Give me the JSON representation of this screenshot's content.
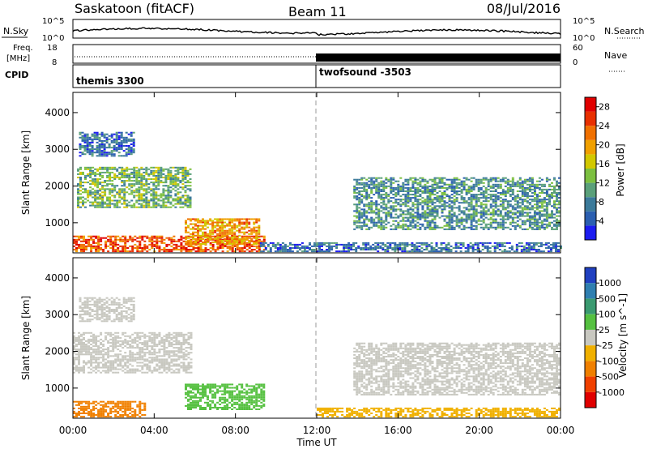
{
  "header": {
    "station": "Saskatoon (fitACF)",
    "beam": "Beam 11",
    "date": "08/Jul/2016"
  },
  "noise_panel": {
    "left_label": "N.Sky",
    "left_ticks": [
      "10^5",
      "10^0"
    ],
    "right_label": "N.Search",
    "right_ticks": [
      "10^5",
      "10^0"
    ]
  },
  "freq_panel": {
    "left_label_1": "Freq.",
    "left_label_2": "[MHz]",
    "left_ticks": [
      "18",
      "8"
    ],
    "right_label": "Nave",
    "right_ticks": [
      "60",
      "0"
    ],
    "cpid_label": "CPID"
  },
  "cpid_panel": {
    "programs": [
      {
        "name": "themis 3300",
        "start_hour": 0
      },
      {
        "name": "twofsound -3503",
        "start_hour": 12
      }
    ]
  },
  "x_axis": {
    "label": "Time UT",
    "ticks": [
      "00:00",
      "04:00",
      "08:00",
      "12:00",
      "16:00",
      "20:00",
      "00:00"
    ]
  },
  "chart_data": [
    {
      "type": "heatmap",
      "panel": "power",
      "ylabel": "Slant Range [km]",
      "yticks": [
        "4000",
        "3000",
        "2000",
        "1000"
      ],
      "ylim": [
        180,
        4550
      ],
      "xlim_hours": [
        0,
        24
      ],
      "colorbar": {
        "label": "Power [dB]",
        "ticks": [
          "28",
          "24",
          "20",
          "16",
          "12",
          "8",
          "4"
        ],
        "range": [
          0,
          30
        ],
        "colors": [
          "#1c1cf0",
          "#2b5fb0",
          "#3b7a9a",
          "#5aa07a",
          "#7cc040",
          "#d2c800",
          "#f0a000",
          "#f07000",
          "#e83000",
          "#e00000"
        ]
      },
      "echo_regions": [
        {
          "t0": 0,
          "t1": 9.4,
          "r0": 200,
          "r1": 650,
          "value": 24
        },
        {
          "t0": 0.2,
          "t1": 5.8,
          "r0": 1400,
          "r1": 2500,
          "value": 12
        },
        {
          "t0": 0.3,
          "t1": 3.0,
          "r0": 2800,
          "r1": 3450,
          "value": 6
        },
        {
          "t0": 5.5,
          "t1": 9.2,
          "r0": 400,
          "r1": 1100,
          "value": 20
        },
        {
          "t0": 9.2,
          "t1": 24,
          "r0": 200,
          "r1": 450,
          "value": 6
        },
        {
          "t0": 13.8,
          "t1": 24,
          "r0": 800,
          "r1": 2200,
          "value": 9
        }
      ]
    },
    {
      "type": "heatmap",
      "panel": "velocity",
      "ylabel": "Slant Range [km]",
      "yticks": [
        "4000",
        "3000",
        "2000",
        "1000"
      ],
      "ylim": [
        180,
        4550
      ],
      "xlim_hours": [
        0,
        24
      ],
      "colorbar": {
        "label": "Velocity [m s^-1]",
        "ticks": [
          "1000",
          "500",
          "100",
          "25",
          "-25",
          "-100",
          "-500",
          "-1000"
        ],
        "colors": [
          "#2040c0",
          "#2f7fb0",
          "#3a9a70",
          "#55c040",
          "#c8c8c0",
          "#f0b000",
          "#f08000",
          "#f04000",
          "#e00000"
        ]
      },
      "echo_regions": [
        {
          "t0": 0,
          "t1": 5.8,
          "r0": 1400,
          "r1": 2500,
          "value": 0
        },
        {
          "t0": 0.3,
          "t1": 3.0,
          "r0": 2800,
          "r1": 3450,
          "value": 0
        },
        {
          "t0": 0,
          "t1": 3.5,
          "r0": 200,
          "r1": 650,
          "value": -300
        },
        {
          "t0": 5.5,
          "t1": 9.4,
          "r0": 400,
          "r1": 1100,
          "value": 60
        },
        {
          "t0": 13.8,
          "t1": 24,
          "r0": 800,
          "r1": 2200,
          "value": 0
        },
        {
          "t0": 12,
          "t1": 24,
          "r0": 200,
          "r1": 450,
          "value": -60
        }
      ]
    }
  ]
}
